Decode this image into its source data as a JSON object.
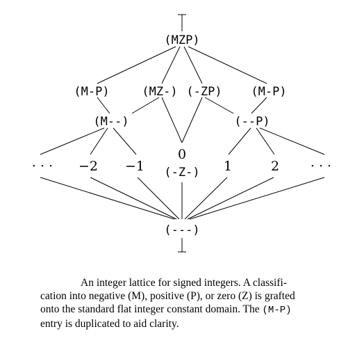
{
  "diagram": {
    "top_symbol": "⊤",
    "bottom_symbol": "⊥",
    "nodes": {
      "mzp": "(MZP)",
      "mp_left": "(M-P)",
      "mz": "(MZ-)",
      "zp": "(-ZP)",
      "mp_right": "(M-P)",
      "m": "(M--)",
      "p": "(--P)",
      "ellipsis_left": "· · ·",
      "neg2": "−2",
      "neg1": "−1",
      "zero": "0",
      "z": "(-Z-)",
      "pos1": "1",
      "pos2": "2",
      "ellipsis_right": "· · ·",
      "none": "(---)"
    }
  },
  "caption": {
    "line1": "An integer lattice for signed integers. A classifi-",
    "line2": "cation into negative (M), positive (P), or zero (Z) is grafted",
    "line3": "onto the standard flat integer constant domain. The",
    "code": "(M-P)",
    "line4": "entry is duplicated to aid clarity."
  }
}
